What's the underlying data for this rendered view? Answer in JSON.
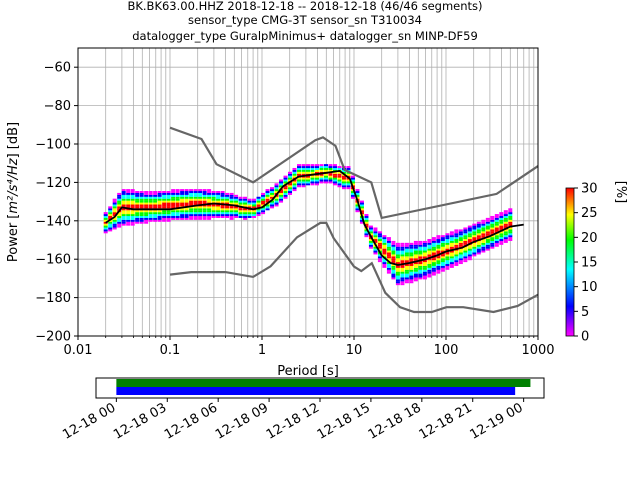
{
  "chart_data": {
    "type": "heatmap",
    "title_lines": [
      "BK.BK63.00.HHZ   2018-12-18 -- 2018-12-18  (46/46 segments)",
      "sensor_type CMG-3T sensor_sn T310034",
      "datalogger_type GuralpMinimus+ datalogger_sn MINP-DF59"
    ],
    "xlabel": "Period [s]",
    "ylabel_prefix": "Power [",
    "ylabel_math": "m²/s⁴/Hz",
    "ylabel_suffix": "] [dB]",
    "xscale": "log",
    "xlim": [
      0.01,
      1000
    ],
    "ylim": [
      -200,
      -50
    ],
    "xticks": [
      0.01,
      0.1,
      1,
      10,
      100,
      1000
    ],
    "xtick_labels": [
      "0.01",
      "0.1",
      "1",
      "10",
      "100",
      "1000"
    ],
    "yticks": [
      -200,
      -180,
      -160,
      -140,
      -120,
      -100,
      -80,
      -60
    ],
    "ytick_labels": [
      "−200",
      "−180",
      "−160",
      "−140",
      "−120",
      "−100",
      "−80",
      "−60"
    ],
    "grid": true,
    "colorbar": {
      "label": "[%]",
      "range": [
        0,
        30
      ],
      "ticks": [
        0,
        5,
        10,
        15,
        20,
        25,
        30
      ],
      "tick_labels": [
        "0",
        "5",
        "10",
        "15",
        "20",
        "25",
        "30"
      ],
      "colors": [
        "#ff00ff",
        "#0000ff",
        "#00ffff",
        "#00ff00",
        "#ffff00",
        "#ff0000"
      ]
    },
    "noise_model_color": "#666666",
    "high_noise_model": {
      "period": [
        0.1,
        0.22,
        0.32,
        0.8,
        3.8,
        4.6,
        6.3,
        7.9,
        15.4,
        20,
        354.8,
        1000
      ],
      "power": [
        -91.5,
        -97.4,
        -110.5,
        -120,
        -98,
        -96.5,
        -101,
        -113.5,
        -120,
        -138.5,
        -126,
        -111.5
      ]
    },
    "low_noise_model": {
      "period": [
        0.1,
        0.17,
        0.4,
        0.8,
        1.24,
        2.4,
        4.3,
        5,
        6,
        10,
        12,
        15.6,
        21.9,
        31.6,
        45,
        70,
        101,
        154,
        328,
        600,
        1000
      ],
      "power": [
        -168,
        -166.7,
        -166.7,
        -169.2,
        -163.7,
        -148.6,
        -141.1,
        -141.1,
        -149,
        -163.8,
        -166.2,
        -162.1,
        -177.5,
        -185,
        -187.5,
        -187.5,
        -185,
        -185,
        -187.5,
        -184.4,
        -178.5
      ]
    },
    "mean_psd": {
      "period": [
        0.02,
        0.025,
        0.03,
        0.04,
        0.06,
        0.1,
        0.2,
        0.3,
        0.5,
        0.8,
        1.0,
        1.3,
        1.7,
        2.5,
        3.5,
        5.0,
        7.0,
        9.0,
        11,
        13,
        16,
        20,
        25,
        30,
        40,
        60,
        80,
        100,
        150,
        200,
        300,
        500,
        700
      ],
      "power": [
        -141,
        -138,
        -133,
        -134,
        -134,
        -134,
        -132,
        -131,
        -132,
        -134,
        -133,
        -129,
        -122,
        -117,
        -116,
        -115,
        -114,
        -118,
        -130,
        -142,
        -150,
        -158,
        -162,
        -163,
        -162,
        -160,
        -158,
        -156,
        -154,
        -151,
        -148,
        -143,
        -142
      ]
    },
    "psd_distribution": [
      {
        "period": 0.02,
        "center": -141,
        "spread": 2
      },
      {
        "period": 0.03,
        "center": -133,
        "spread": 7
      },
      {
        "period": 0.06,
        "center": -133,
        "spread": 5
      },
      {
        "period": 0.1,
        "center": -132,
        "spread": 5
      },
      {
        "period": 0.2,
        "center": -131,
        "spread": 5
      },
      {
        "period": 0.4,
        "center": -132,
        "spread": 4
      },
      {
        "period": 0.8,
        "center": -134,
        "spread": 2
      },
      {
        "period": 1.5,
        "center": -126,
        "spread": 3
      },
      {
        "period": 2.5,
        "center": -117,
        "spread": 3
      },
      {
        "period": 5.0,
        "center": -115,
        "spread": 2
      },
      {
        "period": 9.0,
        "center": -118,
        "spread": 3
      },
      {
        "period": 15,
        "center": -148,
        "spread": 3
      },
      {
        "period": 30,
        "center": -163,
        "spread": 8
      },
      {
        "period": 60,
        "center": -160,
        "spread": 7
      },
      {
        "period": 150,
        "center": -153,
        "spread": 6
      },
      {
        "period": 500,
        "center": -142,
        "spread": 5
      }
    ]
  },
  "timeline": {
    "xtick_labels": [
      "12-18 00",
      "12-18 03",
      "12-18 06",
      "12-18 09",
      "12-18 12",
      "12-18 15",
      "12-18 18",
      "12-18 21",
      "12-19 00"
    ],
    "range_hours": [
      -1.2,
      25.2
    ],
    "bars": [
      {
        "start_hour": 0,
        "end_hour": 24.4,
        "color": "#008000"
      },
      {
        "start_hour": 0,
        "end_hour": 23.5,
        "color": "#0000ff"
      }
    ]
  }
}
